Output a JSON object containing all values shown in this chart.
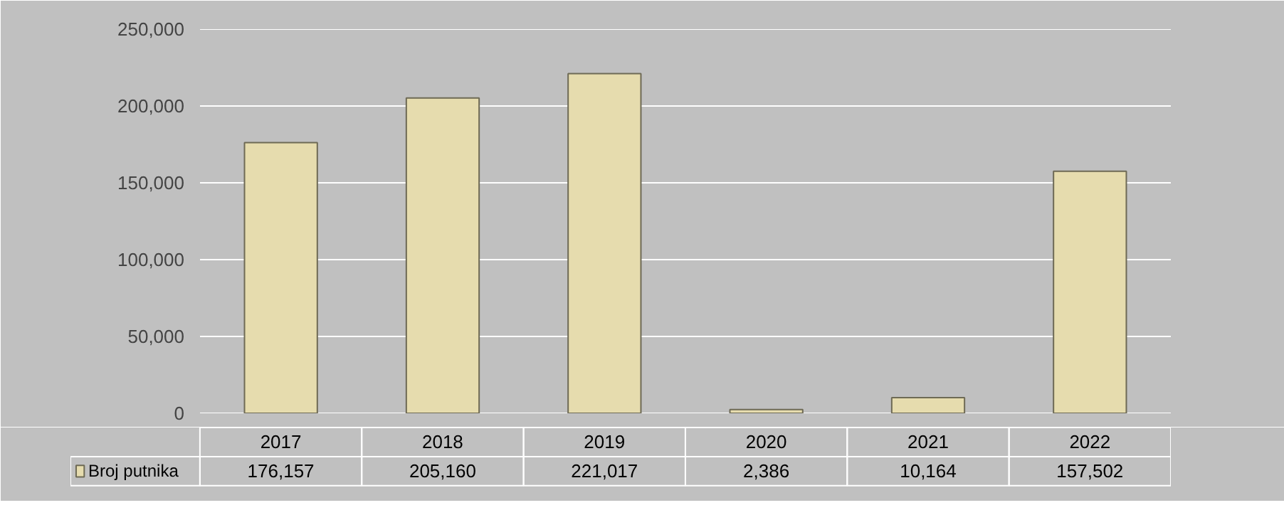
{
  "chart_data": {
    "type": "bar",
    "categories": [
      "2017",
      "2018",
      "2019",
      "2020",
      "2021",
      "2022"
    ],
    "series": [
      {
        "name": "Broj putnika",
        "color": "#e6dcae",
        "values": [
          176157,
          205160,
          221017,
          2386,
          10164,
          157502
        ],
        "value_labels": [
          "176,157",
          "205,160",
          "221,017",
          "2,386",
          "10,164",
          "157,502"
        ]
      }
    ],
    "ylim": [
      0,
      250000
    ],
    "yticks": [
      {
        "value": 0,
        "label": "0"
      },
      {
        "value": 50000,
        "label": "50,000"
      },
      {
        "value": 100000,
        "label": "100,000"
      },
      {
        "value": 150000,
        "label": "150,000"
      },
      {
        "value": 200000,
        "label": "200,000"
      },
      {
        "value": 250000,
        "label": "250,000"
      }
    ],
    "grid": "y"
  }
}
